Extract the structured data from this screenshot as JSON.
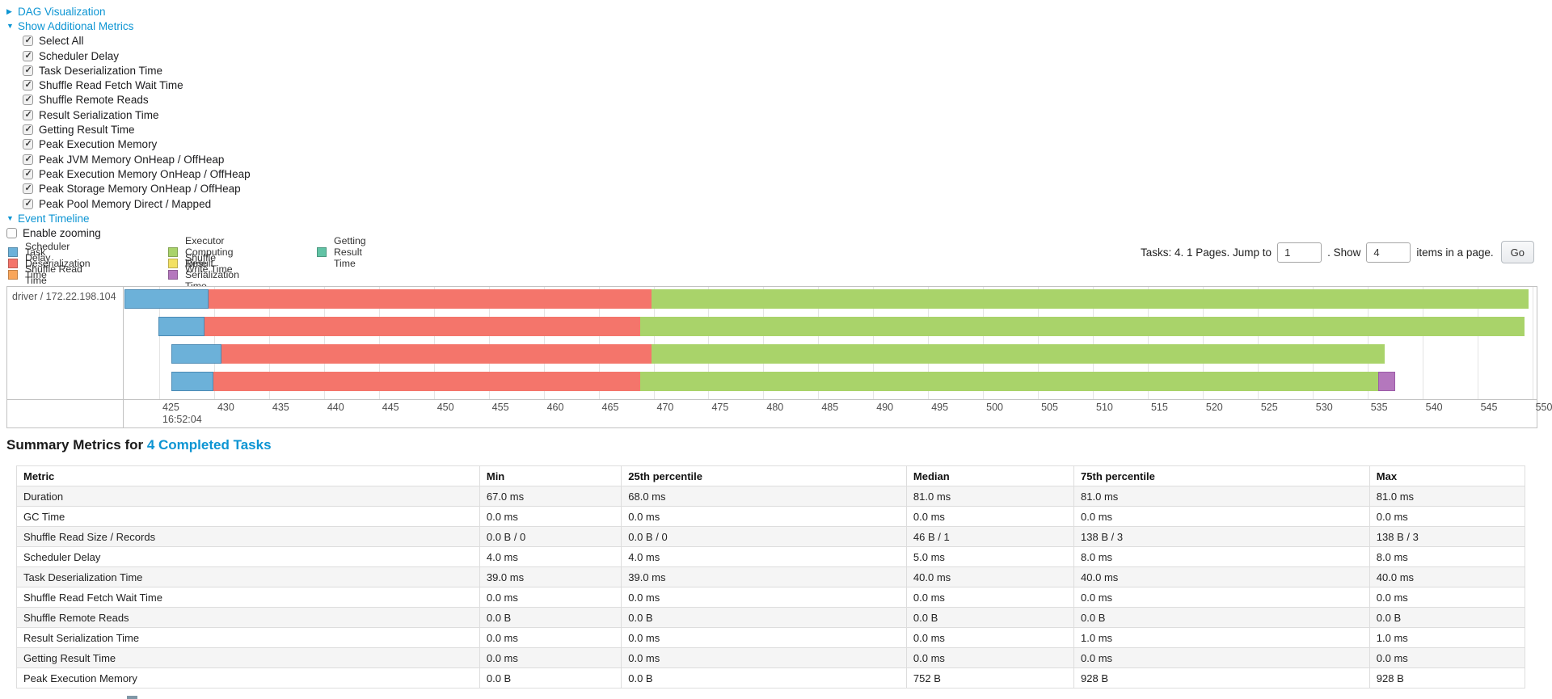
{
  "controls": {
    "dag": {
      "label": "DAG Visualization",
      "arrow": "▶"
    },
    "metrics_toggle": {
      "label": "Show Additional Metrics",
      "arrow": "▼"
    },
    "metrics_items": [
      {
        "label": "Select All",
        "checked": true
      },
      {
        "label": "Scheduler Delay",
        "checked": true
      },
      {
        "label": "Task Deserialization Time",
        "checked": true
      },
      {
        "label": "Shuffle Read Fetch Wait Time",
        "checked": true
      },
      {
        "label": "Shuffle Remote Reads",
        "checked": true
      },
      {
        "label": "Result Serialization Time",
        "checked": true
      },
      {
        "label": "Getting Result Time",
        "checked": true
      },
      {
        "label": "Peak Execution Memory",
        "checked": true
      },
      {
        "label": "Peak JVM Memory OnHeap / OffHeap",
        "checked": true
      },
      {
        "label": "Peak Execution Memory OnHeap / OffHeap",
        "checked": true
      },
      {
        "label": "Peak Storage Memory OnHeap / OffHeap",
        "checked": true
      },
      {
        "label": "Peak Pool Memory Direct / Mapped",
        "checked": true
      }
    ],
    "event_timeline": {
      "label": "Event Timeline",
      "arrow": "▼"
    },
    "enable_zooming": {
      "label": "Enable zooming",
      "checked": false
    }
  },
  "pagination": {
    "tasks_text": "Tasks: 4. 1 Pages. Jump to",
    "jump_value": "1",
    "mid_text": ". Show",
    "show_value": "4",
    "suffix_text": "items in a page.",
    "go_label": "Go"
  },
  "chart_data": {
    "type": "timeline-gantt",
    "title": "Event Timeline",
    "row_label": "driver / 172.22.198.104",
    "x_major_label": "16:52:04",
    "x_ticks": [
      425,
      430,
      435,
      440,
      445,
      450,
      455,
      460,
      465,
      470,
      475,
      480,
      485,
      490,
      495,
      500,
      505,
      510,
      515,
      520,
      525,
      530,
      535,
      540,
      545,
      550
    ],
    "view_min": 421.76,
    "view_max": 550.4,
    "colors": {
      "scheduler_delay": "#6CB1D9",
      "task_deserialization": "#F4756B",
      "shuffle_read": "#F9A65B",
      "executor_computing": "#A9D36A",
      "shuffle_write": "#F3E163",
      "result_serialization": "#B477BD",
      "getting_result": "#61C3A5"
    },
    "segment_borders": {
      "scheduler_delay": "#4B8AB4",
      "result_serialization": "#9C5BA8"
    },
    "legend_columns": [
      [
        {
          "key": "scheduler_delay",
          "label": "Scheduler Delay"
        },
        {
          "key": "task_deserialization",
          "label": "Task Deserialization Time"
        },
        {
          "key": "shuffle_read",
          "label": "Shuffle Read Time"
        }
      ],
      [
        {
          "key": "executor_computing",
          "label": "Executor Computing Time"
        },
        {
          "key": "shuffle_write",
          "label": "Shuffle Write Time"
        },
        {
          "key": "result_serialization",
          "label": "Result Serialization Time"
        }
      ],
      [
        {
          "key": "getting_result",
          "label": "Getting Result Time"
        }
      ]
    ],
    "tasks": [
      {
        "segments": [
          [
            "scheduler_delay",
            421.8,
            429.5
          ],
          [
            "task_deserialization",
            429.5,
            469.8
          ],
          [
            "executor_computing",
            469.8,
            549.7
          ]
        ]
      },
      {
        "segments": [
          [
            "scheduler_delay",
            424.9,
            429.1
          ],
          [
            "task_deserialization",
            429.1,
            468.8
          ],
          [
            "executor_computing",
            468.8,
            549.3
          ]
        ]
      },
      {
        "segments": [
          [
            "scheduler_delay",
            426.1,
            430.7
          ],
          [
            "task_deserialization",
            430.7,
            469.8
          ],
          [
            "executor_computing",
            469.8,
            536.6
          ]
        ]
      },
      {
        "segments": [
          [
            "scheduler_delay",
            426.1,
            429.9
          ],
          [
            "task_deserialization",
            429.9,
            468.8
          ],
          [
            "executor_computing",
            468.8,
            536.0
          ],
          [
            "result_serialization",
            536.0,
            537.5
          ]
        ]
      }
    ]
  },
  "summary": {
    "title_prefix": "Summary Metrics for ",
    "title_link": "4 Completed Tasks"
  },
  "summary_table": {
    "headers": [
      "Metric",
      "Min",
      "25th percentile",
      "Median",
      "75th percentile",
      "Max"
    ],
    "rows": [
      {
        "metric": "Duration",
        "values": [
          "67.0 ms",
          "68.0 ms",
          "81.0 ms",
          "81.0 ms",
          "81.0 ms"
        ]
      },
      {
        "metric": "GC Time",
        "values": [
          "0.0 ms",
          "0.0 ms",
          "0.0 ms",
          "0.0 ms",
          "0.0 ms"
        ]
      },
      {
        "metric": "Shuffle Read Size / Records",
        "values": [
          "0.0 B / 0",
          "0.0 B / 0",
          "46 B / 1",
          "138 B / 3",
          "138 B / 3"
        ]
      },
      {
        "metric": "Scheduler Delay",
        "values": [
          "4.0 ms",
          "4.0 ms",
          "5.0 ms",
          "8.0 ms",
          "8.0 ms"
        ]
      },
      {
        "metric": "Task Deserialization Time",
        "values": [
          "39.0 ms",
          "39.0 ms",
          "40.0 ms",
          "40.0 ms",
          "40.0 ms"
        ]
      },
      {
        "metric": "Shuffle Read Fetch Wait Time",
        "values": [
          "0.0 ms",
          "0.0 ms",
          "0.0 ms",
          "0.0 ms",
          "0.0 ms"
        ]
      },
      {
        "metric": "Shuffle Remote Reads",
        "values": [
          "0.0 B",
          "0.0 B",
          "0.0 B",
          "0.0 B",
          "0.0 B"
        ]
      },
      {
        "metric": "Result Serialization Time",
        "values": [
          "0.0 ms",
          "0.0 ms",
          "0.0 ms",
          "1.0 ms",
          "1.0 ms"
        ]
      },
      {
        "metric": "Getting Result Time",
        "values": [
          "0.0 ms",
          "0.0 ms",
          "0.0 ms",
          "0.0 ms",
          "0.0 ms"
        ]
      },
      {
        "metric": "Peak Execution Memory",
        "values": [
          "0.0 B",
          "0.0 B",
          "752 B",
          "928 B",
          "928 B"
        ]
      }
    ]
  }
}
